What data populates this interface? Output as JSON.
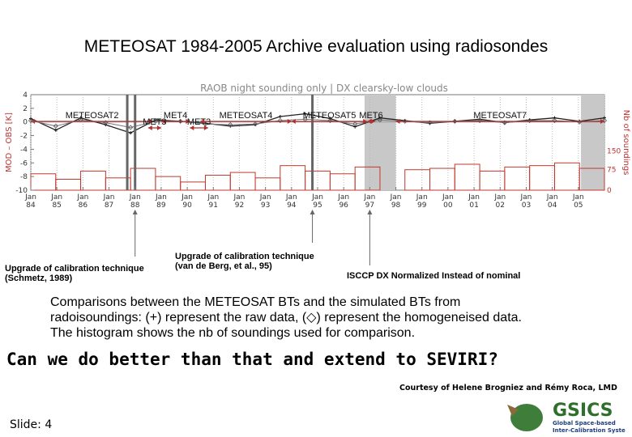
{
  "slide": {
    "title": "METEOSAT 1984-2005 Archive evaluation using radiosondes",
    "caption_lines": [
      "Comparisons between the METEOSAT BTs and the simulated BTs from",
      "radoisoundings: (+) represent the raw data, (◇) represent the homogeneised data.",
      "The histogram shows the nb of soundings used for comparison."
    ],
    "headline": "Can we do better than that and extend to SEVIRI?",
    "courtesy": "Courtesy of Helene Brogniez and Rémy Roca, LMD",
    "slide_number": "Slide: 4",
    "logo": {
      "name": "GSICS",
      "tagline_1": "Global Space-based",
      "tagline_2": "Inter-Calibration System"
    }
  },
  "annotations": {
    "note_1": [
      "Upgrade of calibration technique",
      "(Schmetz, 1989)"
    ],
    "note_2": [
      "Upgrade of calibration technique",
      "(van de Berg, et al., 95)"
    ],
    "note_3": [
      "ISCCP DX Normalized Instead of nominal"
    ]
  },
  "chart_data": {
    "type": "line",
    "title": "RAOB night sounding only | DX clearsky-low clouds",
    "ylabel": "MOD – OBS [K]",
    "y2label": "Nb of soundings",
    "ylim": [
      -10,
      4
    ],
    "yticks": [
      4,
      2,
      0,
      -2,
      -4,
      -6,
      -8,
      -10
    ],
    "y2ticks": [
      "150",
      "75",
      "0"
    ],
    "xlim": [
      1984,
      2006
    ],
    "xtick_years": [
      "84",
      "85",
      "86",
      "87",
      "88",
      "89",
      "90",
      "91",
      "92",
      "93",
      "94",
      "95",
      "96",
      "97",
      "98",
      "99",
      "00",
      "01",
      "02",
      "03",
      "04",
      "05"
    ],
    "xtick_prefix": "Jan",
    "zero_line": true,
    "gap_shading": [
      [
        1996.8,
        1998.0
      ],
      [
        2005.1,
        2006.0
      ]
    ],
    "event_lines": [
      1987.7,
      1988.0,
      1994.8
    ],
    "satellite_periods": [
      {
        "label": "METEOSAT2",
        "start": 1984.0,
        "end": 1988.7,
        "row": 0
      },
      {
        "label": "MET4",
        "start": 1989.0,
        "end": 1990.1,
        "row": 0
      },
      {
        "label": "MET3",
        "start": 1988.5,
        "end": 1989.0,
        "row": 1
      },
      {
        "label": "MET3",
        "start": 1990.1,
        "end": 1990.8,
        "row": 1
      },
      {
        "label": "METEOSAT4",
        "start": 1990.5,
        "end": 1994.0,
        "row": 0
      },
      {
        "label": "METEOSAT5",
        "start": 1994.0,
        "end": 1996.9,
        "row": 0
      },
      {
        "label": "MET6",
        "start": 1996.9,
        "end": 1997.2,
        "row": 0
      },
      {
        "label": "METEOSAT7",
        "start": 1998.0,
        "end": 2006.0,
        "row": 0
      }
    ],
    "series": [
      {
        "style": "raw",
        "values": [
          0.5,
          -1.2,
          0.6,
          -0.4,
          -1.6,
          0.3,
          0.1,
          -0.2,
          -0.6,
          -0.4,
          0.8,
          1.2,
          0.5,
          -0.7,
          0.6,
          0.2,
          -0.2,
          0.1,
          0.4,
          -0.1,
          0.3,
          0.6,
          0.1,
          0.6
        ]
      },
      {
        "style": "homogenized",
        "values": [
          0.2,
          -0.6,
          0.3,
          -0.1,
          -0.8,
          0.1,
          0.1,
          -0.3,
          -0.4,
          -0.3,
          0.2,
          0.4,
          0.2,
          -0.3,
          0.3,
          0.1,
          -0.1,
          0.1,
          0.2,
          -0.1,
          0.2,
          0.2,
          0.0,
          0.2
        ]
      }
    ],
    "histogram": {
      "values": [
        60,
        40,
        70,
        45,
        80,
        50,
        30,
        55,
        65,
        45,
        90,
        70,
        60,
        85,
        0,
        75,
        80,
        95,
        70,
        85,
        90,
        100,
        80
      ]
    }
  }
}
